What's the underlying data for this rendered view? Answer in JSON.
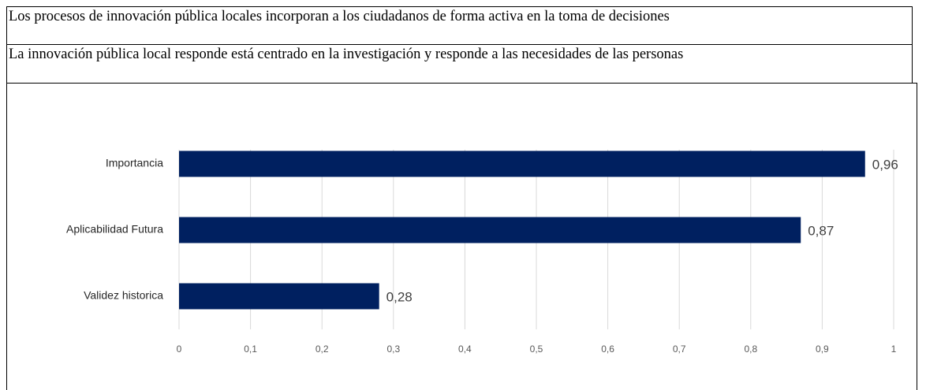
{
  "table": {
    "rows": [
      "Los procesos de innovación pública locales incorporan a los ciudadanos de forma activa en la toma de decisiones",
      "La innovación pública local responde está centrado en la investigación y responde a las necesidades de las personas"
    ]
  },
  "chart_data": {
    "type": "barh",
    "categories": [
      "Importancia",
      "Aplicabilidad Futura",
      "Validez historica"
    ],
    "values": [
      0.96,
      0.87,
      0.28
    ],
    "value_labels": [
      "0,96",
      "0,87",
      "0,28"
    ],
    "color": "#002060",
    "xlim": [
      0,
      1
    ],
    "xticks": [
      0,
      {
        "value": 0.1,
        "label": "0,1"
      },
      {
        "value": 0.2,
        "label": "0,2"
      },
      {
        "value": 0.3,
        "label": "0,3"
      },
      {
        "value": 0.4,
        "label": "0,4"
      },
      {
        "value": 0.5,
        "label": "0,5"
      },
      {
        "value": 0.6,
        "label": "0,6"
      },
      {
        "value": 0.7,
        "label": "0,7"
      },
      {
        "value": 0.8,
        "label": "0,8"
      },
      {
        "value": 0.9,
        "label": "0,9"
      },
      1
    ],
    "grid": true
  }
}
